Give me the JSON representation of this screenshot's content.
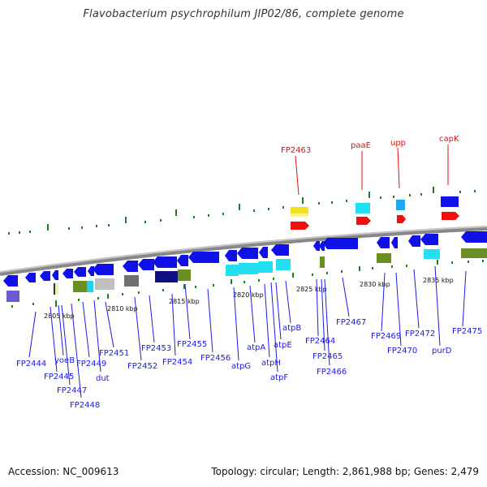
{
  "title": "Flavobacterium psychrophilum JIP02/86, complete genome",
  "footer": {
    "accession": "Accession: NC_009613",
    "summary": "Topology: circular; Length: 2,861,988 bp; Genes: 2,479"
  },
  "colors": {
    "label_blue": "#1a1ae6",
    "label_red": "#e01010",
    "feature_blue": "#1010e8",
    "feature_cyan": "#22e0f0",
    "feature_red": "#f01010",
    "feature_olive": "#6b8e23",
    "feature_yellow": "#f0e020",
    "feature_navy": "#101080",
    "feature_gray": "#707070",
    "track_green": "#208020",
    "axis_gray": "#888888"
  },
  "axis_labels": [
    "2805 kbp",
    "2810 kbp",
    "2815 kbp",
    "2820 kbp",
    "2825 kbp",
    "2830 kbp",
    "2835 kbp"
  ],
  "gene_labels_blue": [
    "FP2444",
    "FP2445",
    "yoeB",
    "FP2447",
    "FP2448",
    "FP2449",
    "dut",
    "FP2451",
    "FP2452",
    "FP2453",
    "FP2454",
    "FP2455",
    "FP2456",
    "atpG",
    "atpA",
    "atpH",
    "atpE",
    "atpF",
    "atpB",
    "FP2464",
    "FP2465",
    "FP2466",
    "FP2467",
    "FP2469",
    "FP2470",
    "FP2472",
    "purD",
    "FP2475"
  ],
  "gene_labels_red": [
    "FP2463",
    "paaE",
    "upp",
    "capK"
  ]
}
